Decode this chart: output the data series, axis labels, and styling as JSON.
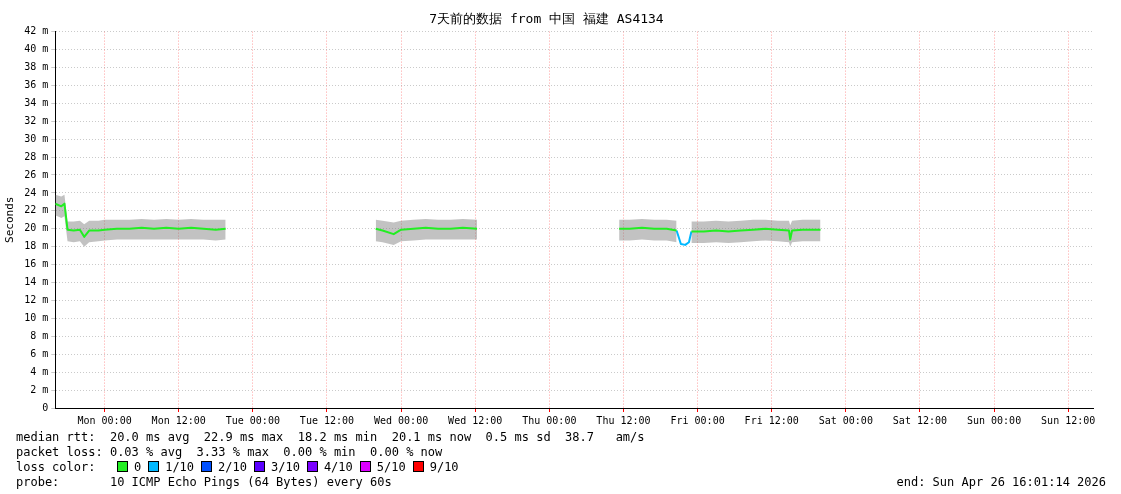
{
  "chart_data": {
    "type": "line",
    "title": "7天前的数据 from 中国 福建 AS4134",
    "ylabel": "Seconds",
    "xlim": [
      "2026-04-19T16:01",
      "2026-04-26T16:01"
    ],
    "ylim": [
      0,
      42
    ],
    "xticks": [
      {
        "value": "2026-04-20T00:00",
        "label": "Mon 00:00"
      },
      {
        "value": "2026-04-20T12:00",
        "label": "Mon 12:00"
      },
      {
        "value": "2026-04-21T00:00",
        "label": "Tue 00:00"
      },
      {
        "value": "2026-04-21T12:00",
        "label": "Tue 12:00"
      },
      {
        "value": "2026-04-22T00:00",
        "label": "Wed 00:00"
      },
      {
        "value": "2026-04-22T12:00",
        "label": "Wed 12:00"
      },
      {
        "value": "2026-04-23T00:00",
        "label": "Thu 00:00"
      },
      {
        "value": "2026-04-23T12:00",
        "label": "Thu 12:00"
      },
      {
        "value": "2026-04-24T00:00",
        "label": "Fri 00:00"
      },
      {
        "value": "2026-04-24T12:00",
        "label": "Fri 12:00"
      },
      {
        "value": "2026-04-25T00:00",
        "label": "Sat 00:00"
      },
      {
        "value": "2026-04-25T12:00",
        "label": "Sat 12:00"
      },
      {
        "value": "2026-04-26T00:00",
        "label": "Sun 00:00"
      },
      {
        "value": "2026-04-26T12:00",
        "label": "Sun 12:00"
      }
    ],
    "yticks": [
      0,
      {
        "value": 2,
        "label": "2 m"
      },
      {
        "value": 4,
        "label": "4 m"
      },
      {
        "value": 6,
        "label": "6 m"
      },
      {
        "value": 8,
        "label": "8 m"
      },
      {
        "value": 10,
        "label": "10 m"
      },
      {
        "value": 12,
        "label": "12 m"
      },
      {
        "value": 14,
        "label": "14 m"
      },
      {
        "value": 16,
        "label": "16 m"
      },
      {
        "value": 18,
        "label": "18 m"
      },
      {
        "value": 20,
        "label": "20 m"
      },
      {
        "value": 22,
        "label": "22 m"
      },
      {
        "value": 24,
        "label": "24 m"
      },
      {
        "value": 26,
        "label": "26 m"
      },
      {
        "value": 28,
        "label": "28 m"
      },
      {
        "value": 30,
        "label": "30 m"
      },
      {
        "value": 32,
        "label": "32 m"
      },
      {
        "value": 34,
        "label": "34 m"
      },
      {
        "value": 36,
        "label": "36 m"
      },
      {
        "value": 38,
        "label": "38 m"
      },
      {
        "value": 40,
        "label": "40 m"
      },
      {
        "value": 42,
        "label": "42 m"
      }
    ],
    "grid": true,
    "marker": "none",
    "line_style": "solid",
    "legend": "bottom left",
    "legend_title": "loss color:",
    "series": [
      {
        "name": "0",
        "color": "#22ee22",
        "x": [
          "2026-04-19T16:01",
          "2026-04-19T17:00",
          "2026-04-19T17:30",
          "2026-04-19T18:00",
          "2026-04-19T19:00",
          "2026-04-19T20:00",
          "2026-04-19T20:42",
          "2026-04-19T21:30",
          "2026-04-19T23:00",
          "2026-04-20T00:00",
          "2026-04-20T02:00",
          "2026-04-20T04:00",
          "2026-04-20T06:00",
          "2026-04-20T08:00",
          "2026-04-20T10:00",
          "2026-04-20T12:00",
          "2026-04-20T14:00",
          "2026-04-20T16:00",
          "2026-04-20T18:00",
          "2026-04-20T19:36",
          "2026-04-20T20:00",
          "2026-04-21T19:54",
          "2026-04-21T21:00",
          "2026-04-21T22:48",
          "2026-04-22T00:00",
          "2026-04-22T02:00",
          "2026-04-22T04:00",
          "2026-04-22T06:00",
          "2026-04-22T08:00",
          "2026-04-22T10:00",
          "2026-04-22T12:18",
          "2026-04-22T13:00",
          "2026-04-23T11:18",
          "2026-04-23T13:00",
          "2026-04-23T15:00",
          "2026-04-23T17:00",
          "2026-04-23T19:00",
          "2026-04-23T20:36",
          "2026-04-23T21:18",
          "2026-04-23T23:00",
          "2026-04-24T01:00",
          "2026-04-24T03:00",
          "2026-04-24T05:00",
          "2026-04-24T07:00",
          "2026-04-24T09:00",
          "2026-04-24T11:00",
          "2026-04-24T13:00",
          "2026-04-24T14:48",
          "2026-04-24T15:00",
          "2026-04-24T15:18",
          "2026-04-24T17:00",
          "2026-04-24T19:54"
        ],
        "values": [
          22.8,
          22.5,
          22.8,
          19.9,
          19.8,
          19.9,
          19.1,
          19.8,
          19.8,
          19.9,
          20.0,
          20.0,
          20.1,
          20.0,
          20.1,
          20.0,
          20.1,
          20.0,
          19.9,
          20.0,
          null,
          20.0,
          19.8,
          19.4,
          19.9,
          20.0,
          20.1,
          20.0,
          20.0,
          20.1,
          20.0,
          null,
          20.0,
          20.0,
          20.1,
          20.0,
          20.0,
          19.8,
          null,
          19.7,
          19.7,
          19.8,
          19.7,
          19.8,
          19.9,
          20.0,
          19.9,
          19.8,
          18.8,
          19.8,
          19.9,
          19.9
        ],
        "lower": [
          21.5,
          21.2,
          21.4,
          18.6,
          18.5,
          18.6,
          18.0,
          18.5,
          18.6,
          18.7,
          18.8,
          18.8,
          18.8,
          18.8,
          18.8,
          18.8,
          18.8,
          18.8,
          18.7,
          18.8,
          null,
          18.6,
          18.5,
          18.2,
          18.6,
          18.7,
          18.8,
          18.8,
          18.8,
          18.8,
          18.8,
          null,
          18.7,
          18.7,
          18.8,
          18.7,
          18.7,
          18.5,
          null,
          18.4,
          18.4,
          18.5,
          18.4,
          18.5,
          18.6,
          18.7,
          18.6,
          18.5,
          18.0,
          18.5,
          18.6,
          18.6
        ],
        "upper": [
          23.8,
          23.6,
          23.8,
          20.8,
          20.8,
          20.9,
          20.5,
          20.9,
          20.9,
          21.0,
          21.0,
          21.0,
          21.1,
          21.0,
          21.1,
          21.0,
          21.1,
          21.0,
          21.0,
          21.0,
          null,
          21.0,
          20.9,
          20.7,
          20.9,
          21.0,
          21.1,
          21.0,
          21.0,
          21.1,
          21.0,
          null,
          21.0,
          21.0,
          21.1,
          21.0,
          21.0,
          20.9,
          null,
          20.8,
          20.8,
          20.9,
          20.8,
          20.9,
          21.0,
          21.0,
          20.9,
          20.9,
          20.4,
          20.9,
          21.0,
          21.0
        ]
      },
      {
        "name": "1/10",
        "color": "#00b8ff",
        "x": [
          "2026-04-23T20:36",
          "2026-04-23T21:18",
          "2026-04-23T22:00",
          "2026-04-23T22:36",
          "2026-04-23T23:00"
        ],
        "values": [
          19.8,
          18.3,
          18.2,
          18.5,
          19.7
        ]
      },
      {
        "name": "2/10",
        "color": "#0050ff"
      },
      {
        "name": "3/10",
        "color": "#5a00ff"
      },
      {
        "name": "4/10",
        "color": "#7a00ff"
      },
      {
        "name": "5/10",
        "color": "#dd00ff"
      },
      {
        "name": "9/10",
        "color": "#ff0000"
      }
    ],
    "annotations": [
      "median rtt:  20.0 ms avg  22.9 ms max  18.2 ms min  20.1 ms now  0.5 ms sd  38.7   am/s",
      "packet loss: 0.03 % avg  3.33 % max  0.00 % min  0.00 % now",
      "probe:       10 ICMP Echo Pings (64 Bytes) every 60s",
      "end: Sun Apr 26 16:01:14 2026"
    ]
  }
}
